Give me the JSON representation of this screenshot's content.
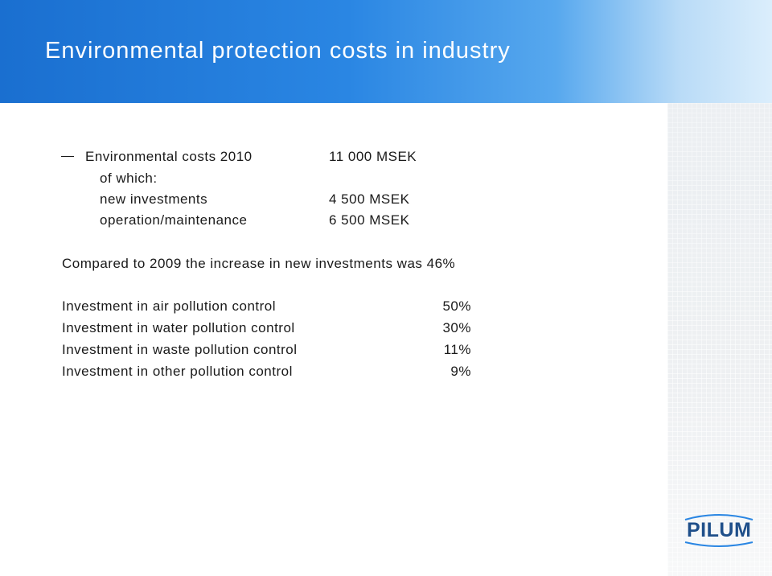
{
  "title": "Environmental protection costs in industry",
  "costs": {
    "total_label": "Environmental costs 2010",
    "total_value": "11 000 MSEK",
    "of_which_label": "of which:",
    "new_investments_label": "new investments",
    "new_investments_value": "4 500 MSEK",
    "operation_label": "operation/maintenance",
    "operation_value": "6 500 MSEK"
  },
  "comparison": "Compared to 2009 the increase in new investments was 46%",
  "investments": [
    {
      "label": "Investment in air pollution control",
      "value": "50%"
    },
    {
      "label": "Investment in water pollution control",
      "value": "30%"
    },
    {
      "label": "Investment in waste pollution control",
      "value": "11%"
    },
    {
      "label": "Investment in other pollution control",
      "value": "9%"
    }
  ],
  "logo": {
    "text": "PILUM"
  },
  "colors": {
    "header_blue": "#1a6fd0",
    "header_light": "#dbeefc",
    "logo_blue": "#1f4f8a"
  }
}
